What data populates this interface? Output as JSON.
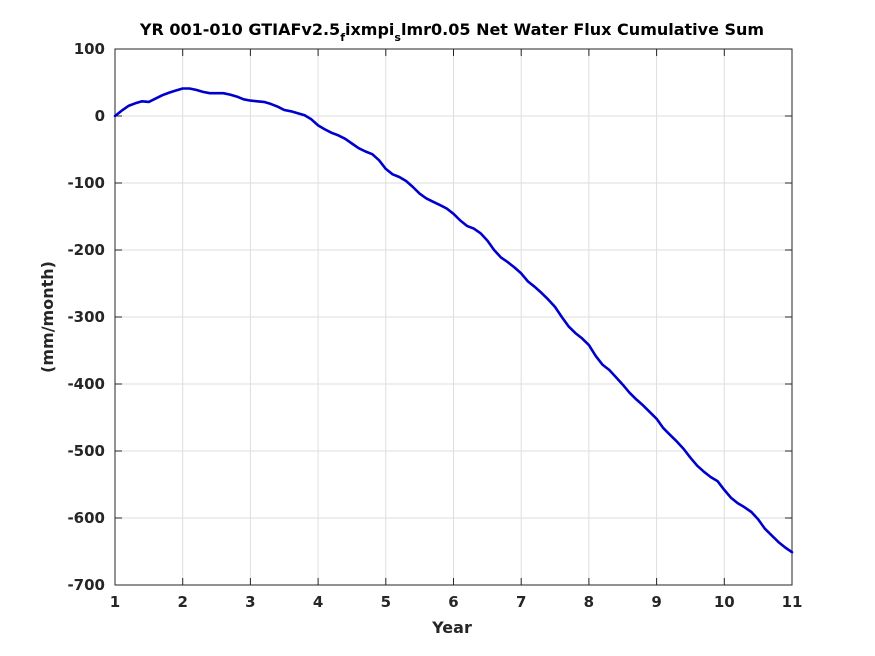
{
  "chart_data": {
    "type": "line",
    "title": {
      "prefix": "YR 001-010 GTIAFv2.5",
      "sub1": "f",
      "mid": "ixmpi",
      "sub2": "s",
      "suffix": "lmr0.05 Net Water Flux Cumulative Sum"
    },
    "xlabel": "Year",
    "ylabel": "(mm/month)",
    "xlim": [
      1,
      11
    ],
    "ylim": [
      -700,
      100
    ],
    "xticks": [
      1,
      2,
      3,
      4,
      5,
      6,
      7,
      8,
      9,
      10,
      11
    ],
    "yticks": [
      100,
      0,
      -100,
      -200,
      -300,
      -400,
      -500,
      -600,
      -700
    ],
    "grid": true,
    "line_color": "#0000cd",
    "series": [
      {
        "x": [
          1.0,
          1.1,
          1.2,
          1.3,
          1.4,
          1.5,
          1.6,
          1.7,
          1.8,
          1.9,
          2.0,
          2.1,
          2.2,
          2.3,
          2.4,
          2.5,
          2.6,
          2.7,
          2.8,
          2.9,
          3.0,
          3.1,
          3.2,
          3.3,
          3.4,
          3.5,
          3.6,
          3.7,
          3.8,
          3.9,
          4.0,
          4.1,
          4.2,
          4.3,
          4.4,
          4.5,
          4.6,
          4.7,
          4.8,
          4.9,
          5.0,
          5.1,
          5.2,
          5.3,
          5.4,
          5.5,
          5.6,
          5.7,
          5.8,
          5.9,
          6.0,
          6.1,
          6.2,
          6.3,
          6.4,
          6.5,
          6.6,
          6.7,
          6.8,
          6.9,
          7.0,
          7.1,
          7.2,
          7.3,
          7.4,
          7.5,
          7.6,
          7.7,
          7.8,
          7.9,
          8.0,
          8.1,
          8.2,
          8.3,
          8.4,
          8.5,
          8.6,
          8.7,
          8.8,
          8.9,
          9.0,
          9.1,
          9.2,
          9.3,
          9.4,
          9.5,
          9.6,
          9.7,
          9.8,
          9.9,
          10.0,
          10.1,
          10.2,
          10.3,
          10.4,
          10.5,
          10.6,
          10.7,
          10.8,
          10.9,
          11.0
        ],
        "y": [
          0,
          8,
          15,
          19,
          22,
          21,
          26,
          31,
          35,
          38,
          41,
          41,
          39,
          36,
          34,
          34,
          34,
          32,
          29,
          25,
          23,
          22,
          21,
          18,
          14,
          9,
          7,
          4,
          1,
          -5,
          -14,
          -20,
          -25,
          -29,
          -34,
          -41,
          -48,
          -53,
          -57,
          -66,
          -79,
          -87,
          -91,
          -97,
          -106,
          -116,
          -123,
          -128,
          -133,
          -138,
          -146,
          -156,
          -164,
          -168,
          -175,
          -186,
          -200,
          -211,
          -218,
          -226,
          -235,
          -247,
          -255,
          -264,
          -274,
          -285,
          -300,
          -314,
          -324,
          -332,
          -342,
          -358,
          -371,
          -379,
          -390,
          -401,
          -413,
          -423,
          -432,
          -442,
          -452,
          -466,
          -476,
          -486,
          -497,
          -510,
          -522,
          -531,
          -539,
          -545,
          -558,
          -570,
          -578,
          -584,
          -591,
          -602,
          -616,
          -626,
          -636,
          -644,
          -651
        ]
      }
    ]
  }
}
